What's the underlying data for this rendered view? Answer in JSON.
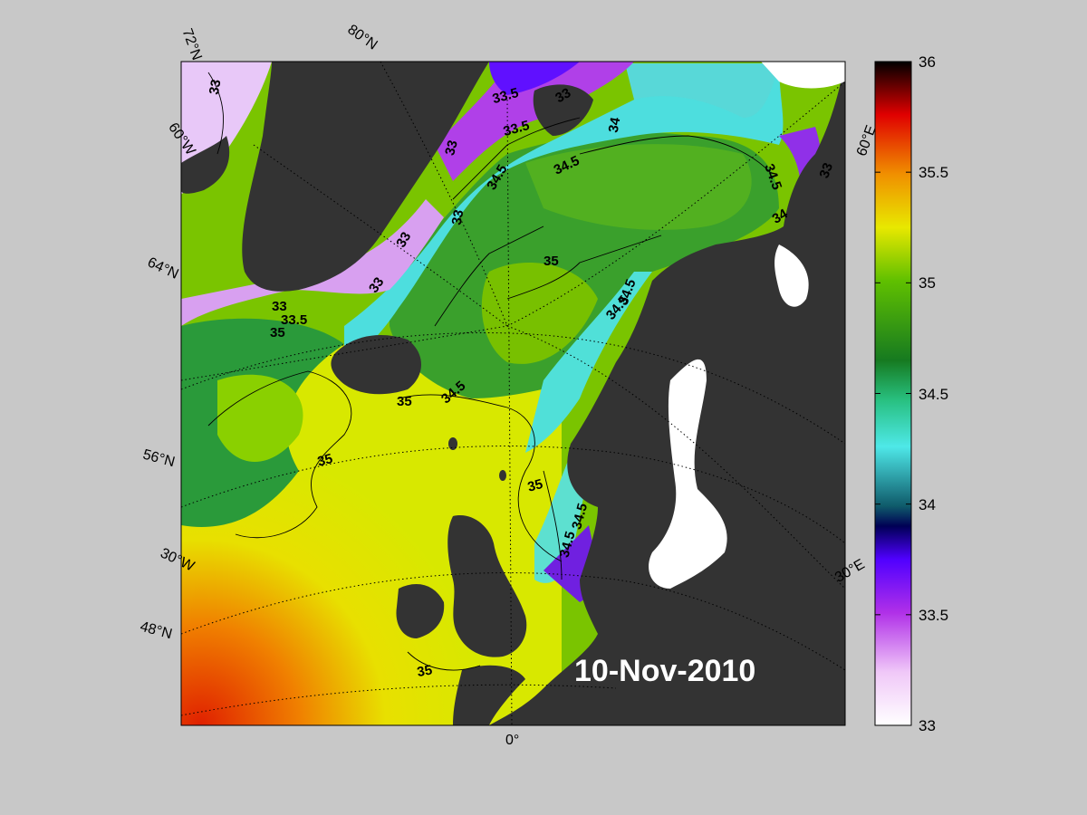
{
  "map": {
    "date_label": "10-Nov-2010",
    "colorbar": {
      "min": 33,
      "max": 36,
      "ticks": [
        "33",
        "33.5",
        "34",
        "34.5",
        "35",
        "35.5",
        "36"
      ]
    },
    "graticule_labels": {
      "lat": [
        "72°N",
        "64°N",
        "56°N",
        "48°N"
      ],
      "lon": [
        "80°N",
        "60°W",
        "30°W",
        "0°",
        "30°E",
        "60°E"
      ]
    },
    "contour_labels": [
      "33",
      "33.5",
      "33.5",
      "33",
      "34",
      "33",
      "34.5",
      "34.5",
      "33",
      "33",
      "33",
      "35",
      "34.5",
      "34.5",
      "34",
      "33",
      "33.5",
      "35",
      "34.5",
      "35",
      "35",
      "35",
      "34.5",
      "34.5",
      "35",
      "34.5",
      "33"
    ]
  }
}
